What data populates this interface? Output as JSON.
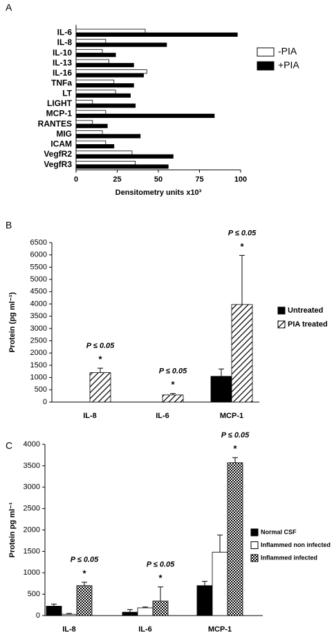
{
  "chart_data": [
    {
      "type": "barh",
      "panel_label": "A",
      "xlabel": "Densitometry units x10³",
      "categories": [
        "IL-6",
        "IL-8",
        "IL-10",
        "IL-13",
        "IL-16",
        "TNFa",
        "LT",
        "LIGHT",
        "MCP-1",
        "RANTES",
        "MIG",
        "ICAM",
        "VegfR2",
        "VegfR3"
      ],
      "series": [
        {
          "name": "-PIA",
          "color": "#ffffff",
          "values": [
            42,
            18,
            16,
            20,
            43,
            23,
            24,
            10,
            18,
            10,
            16,
            18,
            34,
            36
          ]
        },
        {
          "name": "+PIA",
          "color": "#000000",
          "values": [
            98,
            55,
            24,
            35,
            41,
            35,
            33,
            36,
            84,
            19,
            39,
            23,
            59,
            56
          ]
        }
      ],
      "xlim": [
        0,
        100
      ],
      "xticks": [
        0,
        25,
        50,
        75,
        100
      ],
      "legend": "right"
    },
    {
      "type": "bar",
      "panel_label": "B",
      "ylabel": "Protein (pg ml⁻¹)",
      "categories": [
        "IL-8",
        "IL-6",
        "MCP-1"
      ],
      "series": [
        {
          "name": "Untreated",
          "color": "#000000",
          "pattern": "solid",
          "values": [
            0,
            0,
            1050
          ],
          "errors": [
            0,
            0,
            300
          ]
        },
        {
          "name": "PIA treated",
          "color": "#ffffff",
          "pattern": "hatch",
          "values": [
            1200,
            290,
            3980
          ],
          "errors": [
            180,
            60,
            2000
          ]
        }
      ],
      "annotations": [
        "P ≤ 0.05",
        "P ≤ 0.05",
        "P ≤ 0.05"
      ],
      "annotation_marker": "*",
      "ylim": [
        0,
        6500
      ],
      "yticks": [
        0,
        500,
        1000,
        1500,
        2000,
        2500,
        3000,
        3500,
        4000,
        4500,
        5000,
        5500,
        6000,
        6500
      ],
      "legend": "right"
    },
    {
      "type": "bar",
      "panel_label": "C",
      "ylabel": "Protein pg ml⁻¹",
      "categories": [
        "IL-8",
        "IL-6",
        "MCP-1"
      ],
      "series": [
        {
          "name": "Normal CSF",
          "color": "#000000",
          "pattern": "solid",
          "values": [
            220,
            80,
            700
          ],
          "errors": [
            50,
            60,
            100
          ]
        },
        {
          "name": "Inflammed non infected",
          "color": "#ffffff",
          "pattern": "solid",
          "values": [
            30,
            180,
            1480
          ],
          "errors": [
            20,
            20,
            400
          ]
        },
        {
          "name": "Inflammed infected",
          "color": "#ffffff",
          "pattern": "checker",
          "values": [
            700,
            340,
            3570
          ],
          "errors": [
            80,
            330,
            120
          ]
        }
      ],
      "annotations": [
        "P ≤ 0.05",
        "P ≤ 0.05",
        "P ≤ 0.05"
      ],
      "annotation_marker": "*",
      "ylim": [
        0,
        4000
      ],
      "yticks": [
        0,
        500,
        1000,
        1500,
        2000,
        2500,
        3000,
        3500,
        4000
      ],
      "legend": "right"
    }
  ]
}
